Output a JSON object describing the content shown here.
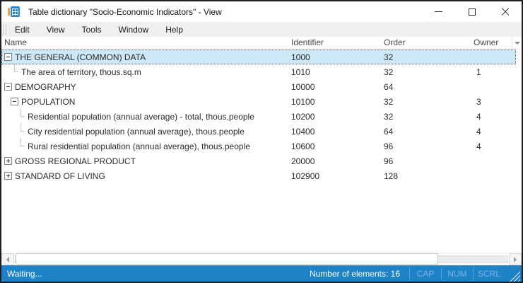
{
  "window": {
    "title": "Table dictionary \"Socio-Economic Indicators\" - View",
    "icon": "table-dictionary-icon",
    "controls": [
      "minimize",
      "maximize",
      "close"
    ]
  },
  "menu": {
    "items": [
      "Edit",
      "View",
      "Tools",
      "Window",
      "Help"
    ]
  },
  "table": {
    "columns": [
      {
        "key": "name",
        "label": "Name"
      },
      {
        "key": "identifier",
        "label": "Identifier"
      },
      {
        "key": "order",
        "label": "Order"
      },
      {
        "key": "owner",
        "label": "Owner"
      }
    ],
    "rows": [
      {
        "name": "THE GENERAL (COMMON) DATA",
        "identifier": "1000",
        "order": "32",
        "owner": "",
        "level": 0,
        "node": "expanded",
        "selected": true
      },
      {
        "name": "The area of territory, thous.sq.m",
        "identifier": "1010",
        "order": "32",
        "owner": "1",
        "level": 1,
        "node": "leaf",
        "selected": false
      },
      {
        "name": "DEMOGRAPHY",
        "identifier": "10000",
        "order": "64",
        "owner": "",
        "level": 0,
        "node": "expanded",
        "selected": false
      },
      {
        "name": "POPULATION",
        "identifier": "10100",
        "order": "32",
        "owner": "3",
        "level": 1,
        "node": "expanded",
        "selected": false
      },
      {
        "name": "Residential population (annual average) - total, thous,people",
        "identifier": "10200",
        "order": "32",
        "owner": "4",
        "level": 2,
        "node": "leaf",
        "selected": false
      },
      {
        "name": "City residential population (annual average), thous.people",
        "identifier": "10400",
        "order": "64",
        "owner": "4",
        "level": 2,
        "node": "leaf",
        "selected": false
      },
      {
        "name": "Rural residential population (annual average), thous.people",
        "identifier": "10600",
        "order": "96",
        "owner": "4",
        "level": 2,
        "node": "leaf",
        "selected": false
      },
      {
        "name": "GROSS REGIONAL PRODUCT",
        "identifier": "20000",
        "order": "96",
        "owner": "",
        "level": 0,
        "node": "collapsed",
        "selected": false
      },
      {
        "name": "STANDARD OF LIVING",
        "identifier": "102900",
        "order": "128",
        "owner": "",
        "level": 0,
        "node": "collapsed",
        "selected": false
      }
    ]
  },
  "statusbar": {
    "status": "Waiting...",
    "elements_count_label": "Number of elements: 16",
    "indicators": [
      "CAP",
      "NUM",
      "SCRL"
    ]
  },
  "colors": {
    "statusbar_bg": "#1d82c8",
    "selected_row_bg": "#cde8f7",
    "icon_blue": "#2287d0",
    "icon_orange": "#f2a33c",
    "indicator_dim_text": "#7db3da"
  }
}
